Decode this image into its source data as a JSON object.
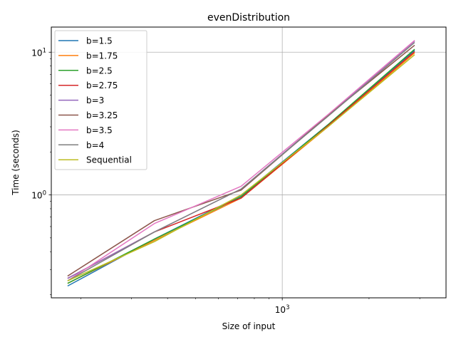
{
  "chart_data": {
    "type": "line",
    "title": "evenDistribution",
    "xlabel": "Size of input",
    "ylabel": "Time (seconds)",
    "xscale": "log",
    "yscale": "log",
    "xlim": [
      158,
      3700
    ],
    "ylim": [
      0.19,
      15
    ],
    "grid": true,
    "legend_position": "top-left",
    "x_ticks": [
      {
        "value": 1000,
        "base": "10",
        "exp": "3"
      }
    ],
    "y_ticks": [
      {
        "value": 1,
        "base": "10",
        "exp": "0"
      },
      {
        "value": 10,
        "base": "10",
        "exp": "1"
      }
    ],
    "x_minor_ticks": [
      200,
      300,
      400,
      500,
      600,
      700,
      800,
      900,
      2000,
      3000
    ],
    "y_minor_ticks": [
      0.2,
      0.3,
      0.4,
      0.5,
      0.6,
      0.7,
      0.8,
      0.9,
      2,
      3,
      4,
      5,
      6,
      7,
      8,
      9
    ],
    "x": [
      180,
      360,
      720,
      1440,
      2880
    ],
    "series": [
      {
        "name": "b=1.5",
        "color": "#1f77b4",
        "values": [
          0.23,
          0.49,
          0.99,
          3.1,
          10.3
        ]
      },
      {
        "name": "b=1.75",
        "color": "#ff7f0e",
        "values": [
          0.24,
          0.48,
          0.95,
          3.0,
          9.9
        ]
      },
      {
        "name": "b=2.5",
        "color": "#2ca02c",
        "values": [
          0.24,
          0.49,
          0.97,
          3.1,
          10.5
        ]
      },
      {
        "name": "b=2.75",
        "color": "#d62728",
        "values": [
          0.26,
          0.55,
          0.95,
          3.05,
          10.1
        ]
      },
      {
        "name": "b=3",
        "color": "#9467bd",
        "values": [
          0.26,
          0.55,
          1.1,
          3.6,
          12.0
        ]
      },
      {
        "name": "b=3.25",
        "color": "#8c564b",
        "values": [
          0.27,
          0.66,
          1.08,
          3.6,
          11.2
        ]
      },
      {
        "name": "b=3.5",
        "color": "#e377c2",
        "values": [
          0.25,
          0.63,
          1.15,
          3.65,
          12.1
        ]
      },
      {
        "name": "b=4",
        "color": "#7f7f7f",
        "values": [
          0.25,
          0.55,
          1.1,
          3.55,
          11.7
        ]
      },
      {
        "name": "Sequential",
        "color": "#bcbd22",
        "values": [
          0.25,
          0.47,
          1.0,
          3.0,
          9.6
        ]
      }
    ]
  }
}
